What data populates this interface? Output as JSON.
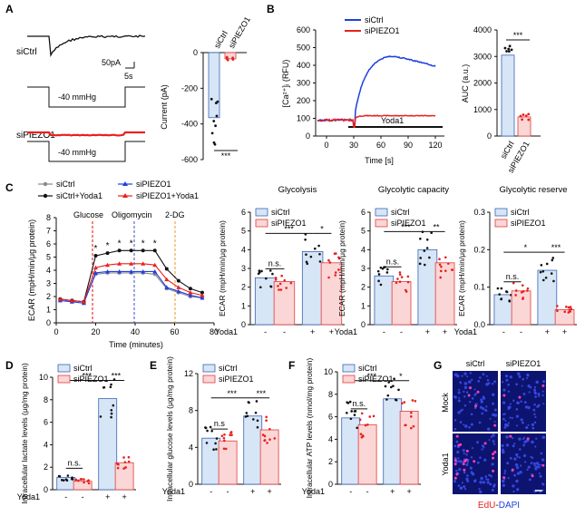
{
  "panels": {
    "A": "A",
    "B": "B",
    "C": "C",
    "D": "D",
    "E": "E",
    "F": "F",
    "G": "G"
  },
  "colors": {
    "ctrl_fill": "#d7e6f6",
    "ctrl_edge": "#3a63b8",
    "piezo_fill": "#fbd6d6",
    "piezo_edge": "#e23b3b",
    "red": "#e8211f",
    "blue": "#1f3fe0"
  },
  "a": {
    "trace_ctrl_label": "siCtrl",
    "trace_piezo_label": "siPIEZO1",
    "scale_y": "50pA",
    "scale_x": "5s",
    "pressure_label": "-40 mmHg",
    "bar_group_labels": [
      "siCtrl",
      "siPIEZO1"
    ],
    "y_title": "Current (pA)",
    "y_ticks": [
      "0",
      "-200",
      "-400",
      "-600"
    ],
    "sig": "***"
  },
  "b": {
    "legend": [
      "siCtrl",
      "siPIEZO1"
    ],
    "y_title_main": "[Ca²⁺]ᵢ (RFU)",
    "x_title": "Time [s]",
    "x_ticks": [
      "0",
      "30",
      "60",
      "90",
      "120"
    ],
    "y_ticks": [
      "0",
      "100",
      "200",
      "300",
      "400",
      "500",
      "600"
    ],
    "stim_label": "Yoda1",
    "auc_title": "AUC (a.u.)",
    "auc_ticks": [
      "0",
      "1000",
      "2000",
      "3000",
      "4000"
    ],
    "auc_groups": [
      "siCtrl",
      "siPIEZO1"
    ],
    "auc_sig": "***"
  },
  "c": {
    "legend": [
      "siCtrl",
      "siPIEZO1",
      "siCtrl+Yoda1",
      "siPIEZO1+Yoda1"
    ],
    "injections": [
      "Glucose",
      "Oligomycin",
      "2-DG"
    ],
    "y_title": "ECAR (mpH/min/μg protein)",
    "x_title": "Time (minutes)",
    "x_ticks": [
      "0",
      "20",
      "40",
      "60",
      "80"
    ],
    "y_ticks": [
      "0",
      "1",
      "2",
      "3",
      "4",
      "5",
      "6",
      "7",
      "8"
    ],
    "star": "*",
    "bar_panels": [
      {
        "title": "Glycolysis",
        "y_ticks": [
          "0",
          "1",
          "2",
          "3",
          "4",
          "5",
          "6"
        ],
        "sig_ns": "n.s.",
        "sig_mid": "***",
        "sig_right": "*"
      },
      {
        "title": "Glycolytic capacity",
        "y_ticks": [
          "0",
          "1",
          "2",
          "3",
          "4",
          "5",
          "6"
        ],
        "sig_ns": "n.s.",
        "sig_mid": "***",
        "sig_right": "**"
      },
      {
        "title": "Glycolytic reserve",
        "y_ticks": [
          "0.0",
          "0.1",
          "0.2",
          "0.3"
        ],
        "sig_ns": "n.s.",
        "sig_mid": "*",
        "sig_right": "***"
      }
    ],
    "bar_legend": [
      "siCtrl",
      "siPIEZO1"
    ],
    "yoda_label": "Yoda1",
    "yoda_signs": [
      "-",
      "-",
      "+",
      "+"
    ]
  },
  "d": {
    "legend": [
      "siCtrl",
      "siPIEZO1"
    ],
    "y_title": "Intracellular lactate levels (μg/mg protein)",
    "y_ticks": [
      "0",
      "2",
      "4",
      "6",
      "8",
      "10"
    ],
    "sig_ns": "n.s.",
    "sig_mid": "***",
    "sig_right": "***",
    "yoda_label": "Yoda1",
    "yoda_signs": [
      "-",
      "-",
      "+",
      "+"
    ]
  },
  "e": {
    "legend": [
      "siCtrl",
      "siPIEZO1"
    ],
    "y_title": "Intracellular glucose levels (μg/mg protein)",
    "y_ticks": [
      "0",
      "4",
      "8",
      "12"
    ],
    "sig_ns": "n.s",
    "sig_mid": "***",
    "sig_right": "***",
    "yoda_label": "Yoda1",
    "yoda_signs": [
      "-",
      "-",
      "+",
      "+"
    ]
  },
  "f": {
    "legend": [
      "siCtrl",
      "siPIEZO1"
    ],
    "y_title": "Intracellular ATP levels (nmol/mg protein)",
    "y_ticks": [
      "0",
      "2",
      "4",
      "6",
      "8",
      "10"
    ],
    "sig_ns": "n.s.",
    "sig_mid": "***",
    "sig_right": "*",
    "yoda_label": "Yoda1",
    "yoda_signs": [
      "-",
      "-",
      "+",
      "+"
    ]
  },
  "g": {
    "col_labels": [
      "siCtrl",
      "siPIEZO1"
    ],
    "row_labels": [
      "Mock",
      "Yoda1"
    ],
    "stain_edu": "EdU",
    "stain_sep": "-",
    "stain_dapi": "DAPI"
  },
  "chart_data": [
    {
      "type": "bar",
      "panel": "A",
      "categories": [
        "siCtrl",
        "siPIEZO1"
      ],
      "values": [
        -365,
        -35
      ],
      "ylim": [
        -600,
        0
      ],
      "ylabel": "Current (pA)"
    },
    {
      "type": "line",
      "panel": "B",
      "x": [
        0,
        30,
        60,
        90,
        120
      ],
      "series": [
        {
          "name": "siCtrl",
          "values": [
            90,
            90,
            440,
            460,
            400
          ]
        },
        {
          "name": "siPIEZO1",
          "values": [
            90,
            90,
            115,
            115,
            110
          ]
        }
      ],
      "ylim": [
        0,
        600
      ],
      "xlabel": "Time [s]"
    },
    {
      "type": "bar",
      "panel": "B-AUC",
      "categories": [
        "siCtrl",
        "siPIEZO1"
      ],
      "values": [
        3050,
        720
      ],
      "ylim": [
        0,
        4000
      ],
      "ylabel": "AUC (a.u.)"
    },
    {
      "type": "line",
      "panel": "C",
      "x": [
        2,
        8,
        14,
        20,
        26,
        32,
        38,
        44,
        50,
        56,
        62,
        68,
        74
      ],
      "series": [
        {
          "name": "siCtrl",
          "values": [
            1.8,
            1.7,
            1.6,
            3.7,
            3.8,
            3.8,
            3.8,
            3.8,
            3.7,
            2.6,
            2.3,
            2.0,
            1.9
          ]
        },
        {
          "name": "siPIEZO1",
          "values": [
            1.7,
            1.6,
            1.5,
            3.8,
            3.9,
            3.9,
            3.9,
            3.9,
            3.9,
            2.7,
            2.4,
            2.1,
            1.9
          ]
        },
        {
          "name": "siCtrl+Yoda1",
          "values": [
            1.8,
            1.7,
            1.6,
            5.1,
            5.3,
            5.5,
            5.5,
            5.5,
            5.5,
            4.1,
            3.2,
            2.6,
            2.3
          ]
        },
        {
          "name": "siPIEZO1+Yoda1",
          "values": [
            1.8,
            1.7,
            1.6,
            4.2,
            4.4,
            4.5,
            4.5,
            4.5,
            4.4,
            3.3,
            2.7,
            2.3,
            2.1
          ]
        }
      ],
      "ylim": [
        0,
        8
      ],
      "xlim": [
        0,
        80
      ],
      "xlabel": "Time (minutes)"
    },
    {
      "type": "bar",
      "panel": "C-Glycolysis",
      "categories": [
        "siCtrl",
        "siPIEZO1",
        "siCtrl+Yoda1",
        "siPIEZO1+Yoda1"
      ],
      "values": [
        2.5,
        2.3,
        3.9,
        3.3
      ],
      "ylim": [
        0,
        6
      ]
    },
    {
      "type": "bar",
      "panel": "C-Glycolytic capacity",
      "categories": [
        "siCtrl",
        "siPIEZO1",
        "siCtrl+Yoda1",
        "siPIEZO1+Yoda1"
      ],
      "values": [
        2.6,
        2.3,
        4.0,
        3.3
      ],
      "ylim": [
        0,
        6
      ]
    },
    {
      "type": "bar",
      "panel": "C-Glycolytic reserve",
      "categories": [
        "siCtrl",
        "siPIEZO1",
        "siCtrl+Yoda1",
        "siPIEZO1+Yoda1"
      ],
      "values": [
        0.08,
        0.09,
        0.145,
        0.04
      ],
      "ylim": [
        0,
        0.3
      ]
    },
    {
      "type": "bar",
      "panel": "D",
      "categories": [
        "siCtrl",
        "siPIEZO1",
        "siCtrl+Yoda1",
        "siPIEZO1+Yoda1"
      ],
      "values": [
        1.1,
        0.75,
        8.1,
        2.4
      ],
      "ylim": [
        0,
        10
      ]
    },
    {
      "type": "bar",
      "panel": "E",
      "categories": [
        "siCtrl",
        "siPIEZO1",
        "siCtrl+Yoda1",
        "siPIEZO1+Yoda1"
      ],
      "values": [
        5.0,
        4.7,
        7.4,
        5.9
      ],
      "ylim": [
        0,
        12
      ]
    },
    {
      "type": "bar",
      "panel": "F",
      "categories": [
        "siCtrl",
        "siPIEZO1",
        "siCtrl+Yoda1",
        "siPIEZO1+Yoda1"
      ],
      "values": [
        5.9,
        5.3,
        7.6,
        6.5
      ],
      "ylim": [
        0,
        10
      ]
    }
  ]
}
